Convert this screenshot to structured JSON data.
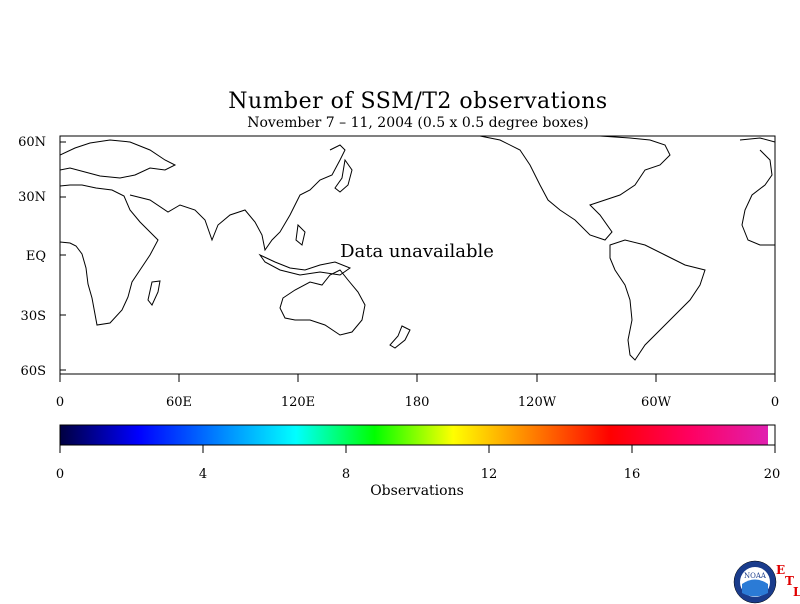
{
  "title": "Number of SSM/T2 observations",
  "subtitle": "November 7 – 11, 2004 (0.5 x 0.5 degree boxes)",
  "map": {
    "lat_labels": [
      "60N",
      "30N",
      "EQ",
      "30S",
      "60S"
    ],
    "lon_labels": [
      "0",
      "60E",
      "120E",
      "180",
      "120W",
      "60W",
      "0"
    ],
    "message": "Data unavailable"
  },
  "colorbar": {
    "tick_labels": [
      "0",
      "4",
      "8",
      "12",
      "16",
      "20"
    ],
    "label": "Observations",
    "range": [
      0,
      20
    ],
    "colors": [
      "#000040",
      "#0000ff",
      "#0080ff",
      "#00ffff",
      "#00ff00",
      "#ffff00",
      "#ff8000",
      "#ff0000",
      "#ff0060",
      "#e020b0",
      "#ffffff"
    ]
  },
  "logo": {
    "text": "NOAA",
    "etl_letters": [
      "E",
      "T",
      "L"
    ]
  }
}
